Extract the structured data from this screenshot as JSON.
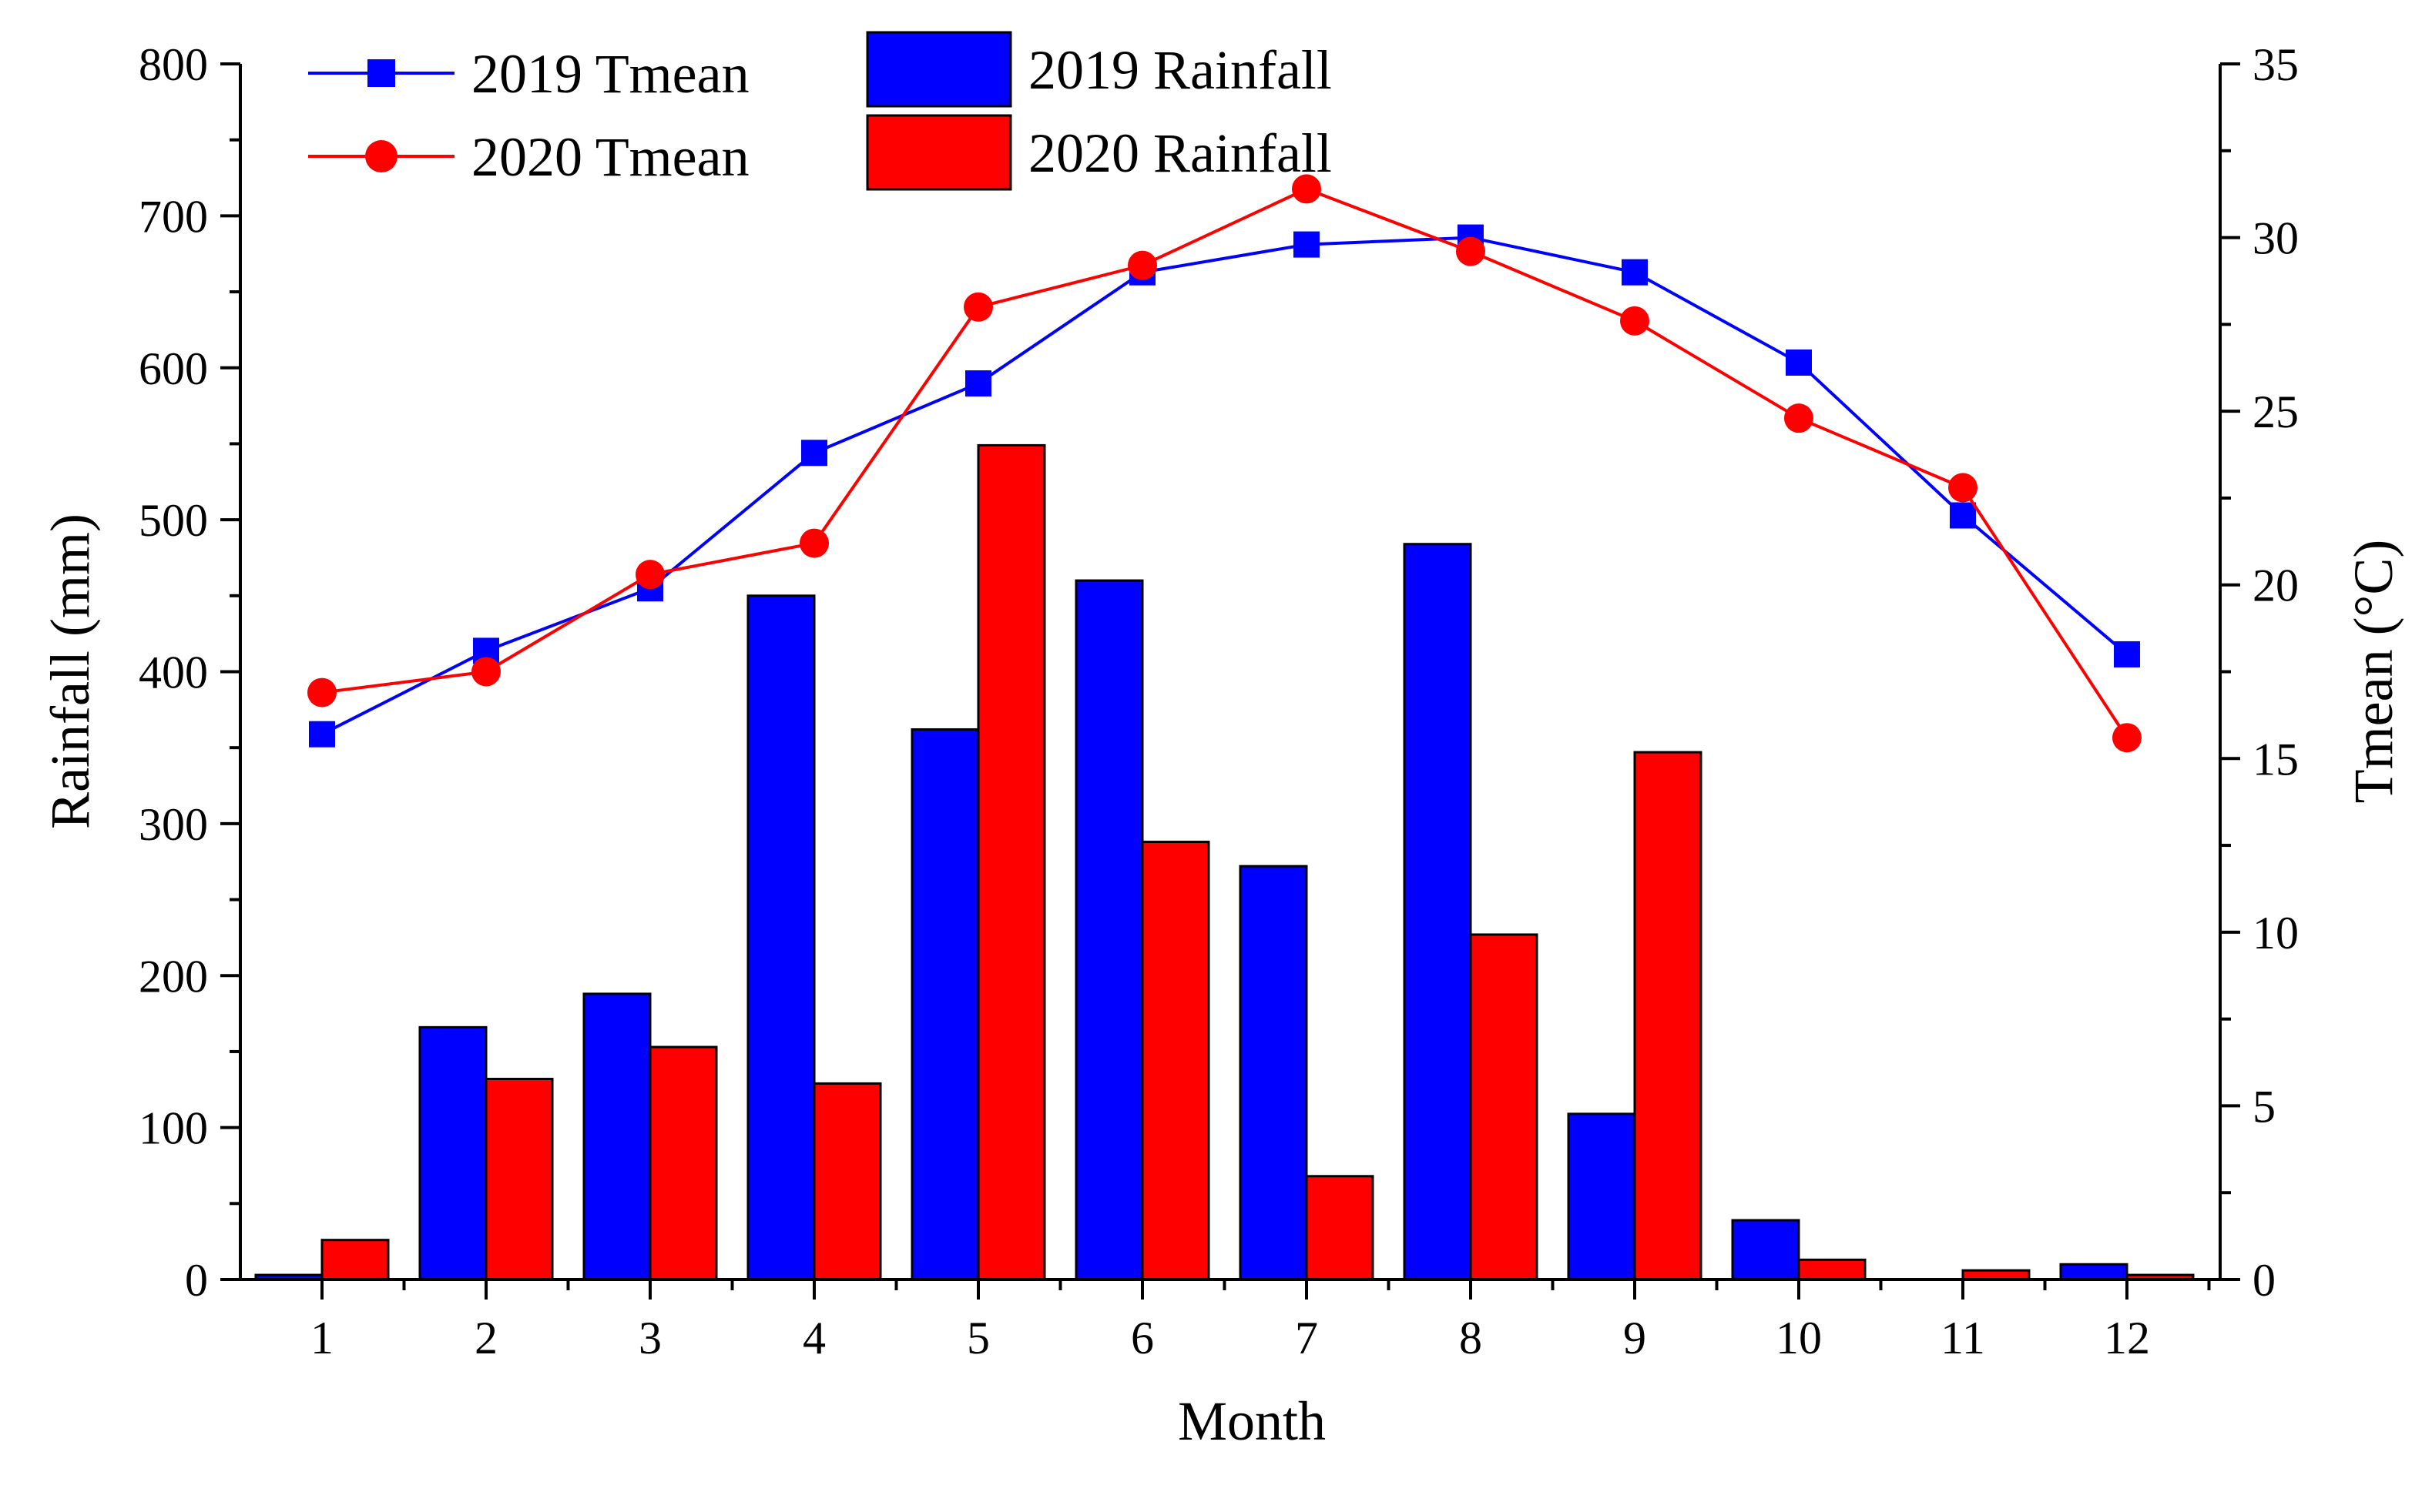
{
  "chart_data": {
    "type": "bar",
    "title": "",
    "xlabel": "Month",
    "ylabel": "Rainfall (mm)",
    "y2label": "Tmean (°C)",
    "categories": [
      "1",
      "2",
      "3",
      "4",
      "5",
      "6",
      "7",
      "8",
      "9",
      "10",
      "11",
      "12"
    ],
    "ylim": [
      0,
      800
    ],
    "y_ticks": [
      "0",
      "100",
      "200",
      "300",
      "400",
      "500",
      "600",
      "700",
      "800"
    ],
    "y2lim": [
      0,
      35
    ],
    "y2_ticks": [
      "0",
      "5",
      "10",
      "15",
      "20",
      "25",
      "30",
      "35"
    ],
    "grid": false,
    "legend_position": "top-left",
    "series": [
      {
        "name": "2019 Rainfall",
        "kind": "bar",
        "axis": "left",
        "color": "#0000ff",
        "values": [
          3,
          166,
          188,
          450,
          362,
          460,
          272,
          484,
          109,
          39,
          0,
          10
        ]
      },
      {
        "name": "2020 Rainfall",
        "kind": "bar",
        "axis": "left",
        "color": "#ff0000",
        "values": [
          26,
          132,
          153,
          129,
          549,
          288,
          68,
          227,
          347,
          13,
          6,
          3
        ]
      },
      {
        "name": "2019 Tmean",
        "kind": "line",
        "marker": "square",
        "axis": "right",
        "color": "#0000ff",
        "values": [
          15.7,
          18.1,
          19.9,
          23.8,
          25.8,
          29.0,
          29.8,
          30.0,
          29.0,
          26.4,
          22.0,
          18.0
        ]
      },
      {
        "name": "2020 Tmean",
        "kind": "line",
        "marker": "circle",
        "axis": "right",
        "color": "#ff0000",
        "values": [
          16.9,
          17.5,
          20.3,
          21.2,
          28.0,
          29.2,
          31.4,
          29.6,
          27.6,
          24.8,
          22.8,
          15.6
        ]
      }
    ]
  }
}
